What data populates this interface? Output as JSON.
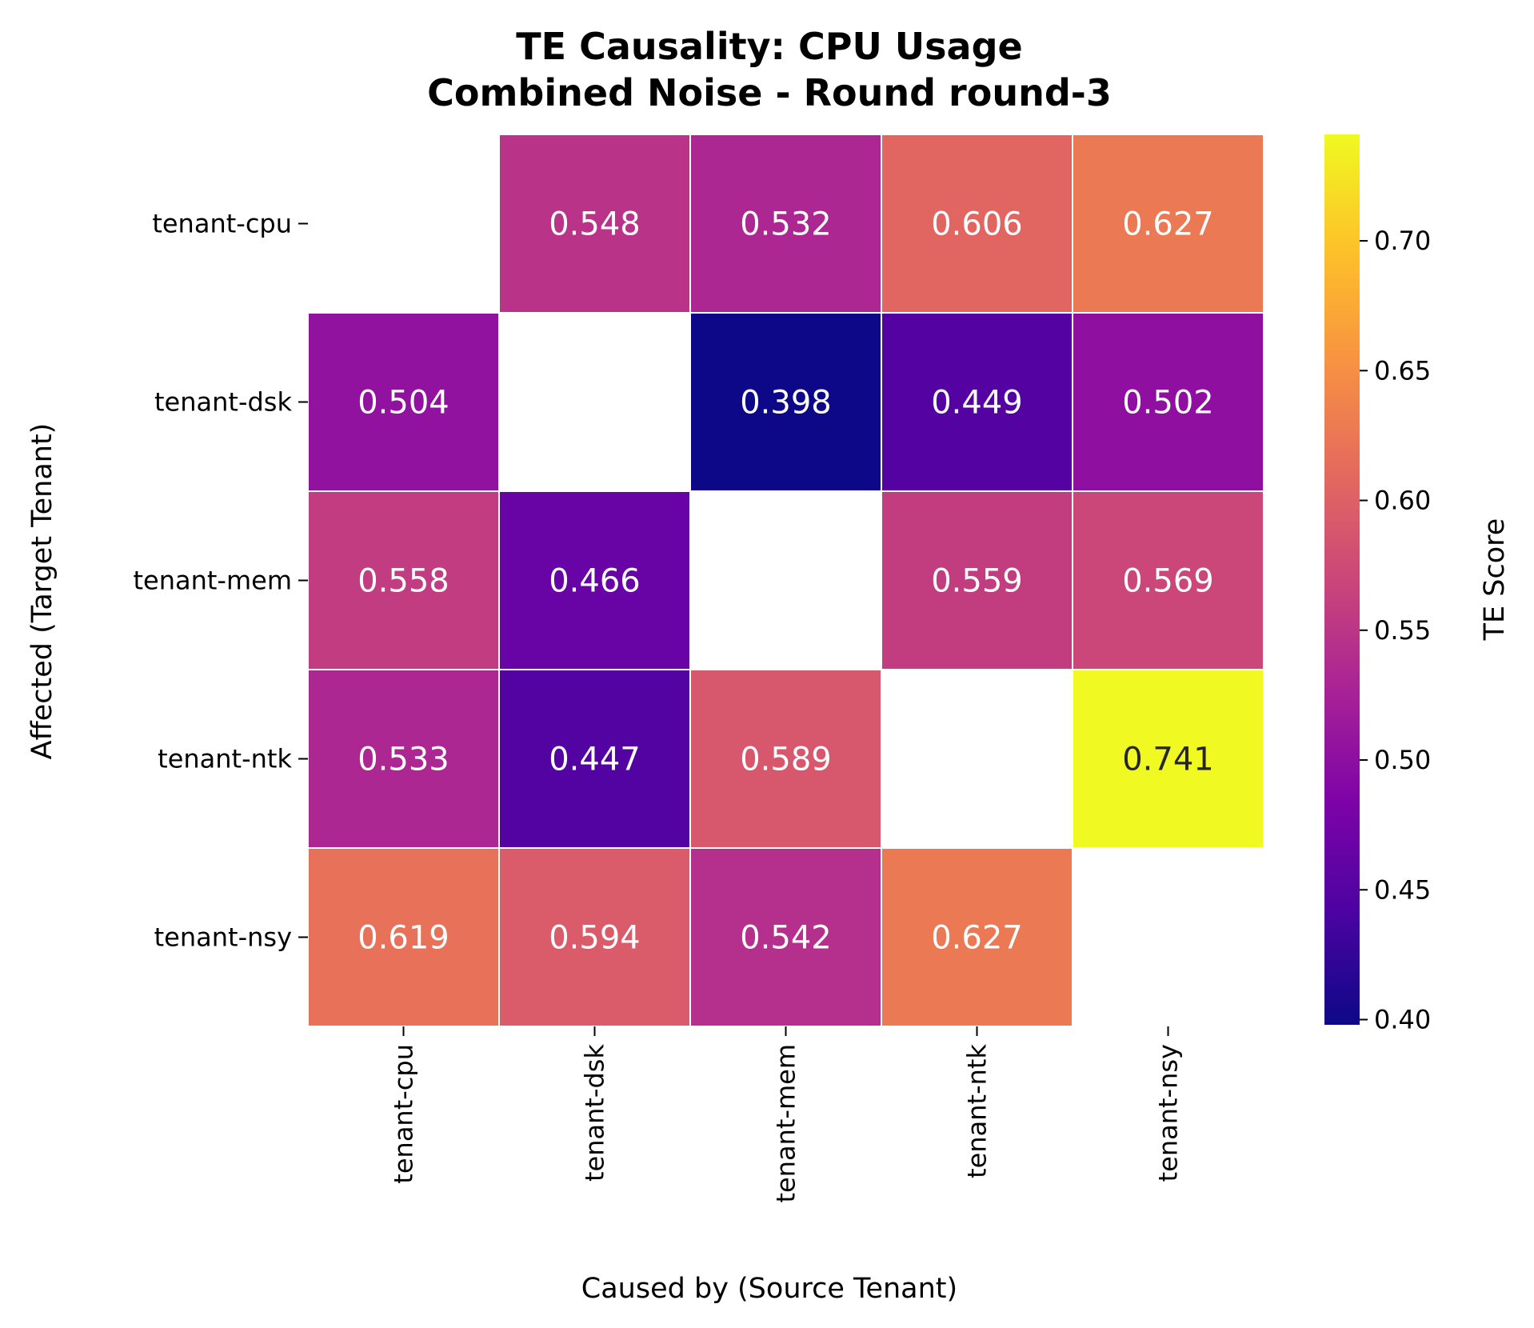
{
  "chart_data": {
    "type": "heatmap",
    "title_lines": [
      "TE Causality: CPU Usage",
      "Combined Noise - Round round-3"
    ],
    "xlabel": "Caused by (Source Tenant)",
    "ylabel": "Affected (Target Tenant)",
    "x_categories": [
      "tenant-cpu",
      "tenant-dsk",
      "tenant-mem",
      "tenant-ntk",
      "tenant-nsy"
    ],
    "y_categories": [
      "tenant-cpu",
      "tenant-dsk",
      "tenant-mem",
      "tenant-ntk",
      "tenant-nsy"
    ],
    "values": [
      [
        null,
        0.548,
        0.532,
        0.606,
        0.627
      ],
      [
        0.504,
        null,
        0.398,
        0.449,
        0.502
      ],
      [
        0.558,
        0.466,
        null,
        0.559,
        0.569
      ],
      [
        0.533,
        0.447,
        0.589,
        null,
        0.741
      ],
      [
        0.619,
        0.594,
        0.542,
        0.627,
        null
      ]
    ],
    "value_labels": [
      [
        null,
        "0.548",
        "0.532",
        "0.606",
        "0.627"
      ],
      [
        "0.504",
        null,
        "0.398",
        "0.449",
        "0.502"
      ],
      [
        "0.558",
        "0.466",
        null,
        "0.559",
        "0.569"
      ],
      [
        "0.533",
        "0.447",
        "0.589",
        null,
        "0.741"
      ],
      [
        "0.619",
        "0.594",
        "0.542",
        "0.627",
        null
      ]
    ],
    "colormap": "plasma",
    "colorbar": {
      "label": "TE Score",
      "range": [
        0.398,
        0.741
      ],
      "ticks": [
        0.4,
        0.45,
        0.5,
        0.55,
        0.6,
        0.65,
        0.7
      ],
      "tick_labels": [
        "0.40",
        "0.45",
        "0.50",
        "0.55",
        "0.60",
        "0.65",
        "0.70"
      ]
    },
    "diagonal_masked": true,
    "grid": false
  }
}
